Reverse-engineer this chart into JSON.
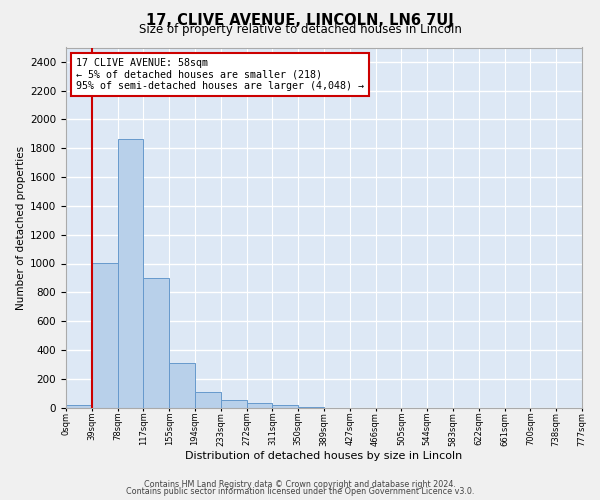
{
  "title": "17, CLIVE AVENUE, LINCOLN, LN6 7UJ",
  "subtitle": "Size of property relative to detached houses in Lincoln",
  "xlabel": "Distribution of detached houses by size in Lincoln",
  "ylabel": "Number of detached properties",
  "bar_color": "#b8d0ea",
  "bar_edge_color": "#6699cc",
  "background_color": "#dde8f5",
  "grid_color": "#ffffff",
  "annotation_box_color": "#cc0000",
  "vline_color": "#cc0000",
  "vline_x": 1.0,
  "annotation_lines": [
    "17 CLIVE AVENUE: 58sqm",
    "← 5% of detached houses are smaller (218)",
    "95% of semi-detached houses are larger (4,048) →"
  ],
  "bin_labels": [
    "0sqm",
    "39sqm",
    "78sqm",
    "117sqm",
    "155sqm",
    "194sqm",
    "233sqm",
    "272sqm",
    "311sqm",
    "350sqm",
    "389sqm",
    "427sqm",
    "466sqm",
    "505sqm",
    "544sqm",
    "583sqm",
    "622sqm",
    "661sqm",
    "700sqm",
    "738sqm",
    "777sqm"
  ],
  "bar_heights": [
    20,
    1005,
    1865,
    900,
    310,
    105,
    50,
    30,
    20,
    5,
    0,
    0,
    0,
    0,
    0,
    0,
    0,
    0,
    0,
    0
  ],
  "ylim": [
    0,
    2500
  ],
  "yticks": [
    0,
    200,
    400,
    600,
    800,
    1000,
    1200,
    1400,
    1600,
    1800,
    2000,
    2200,
    2400
  ],
  "footnote1": "Contains HM Land Registry data © Crown copyright and database right 2024.",
  "footnote2": "Contains public sector information licensed under the Open Government Licence v3.0.",
  "fig_bg": "#f0f0f0"
}
